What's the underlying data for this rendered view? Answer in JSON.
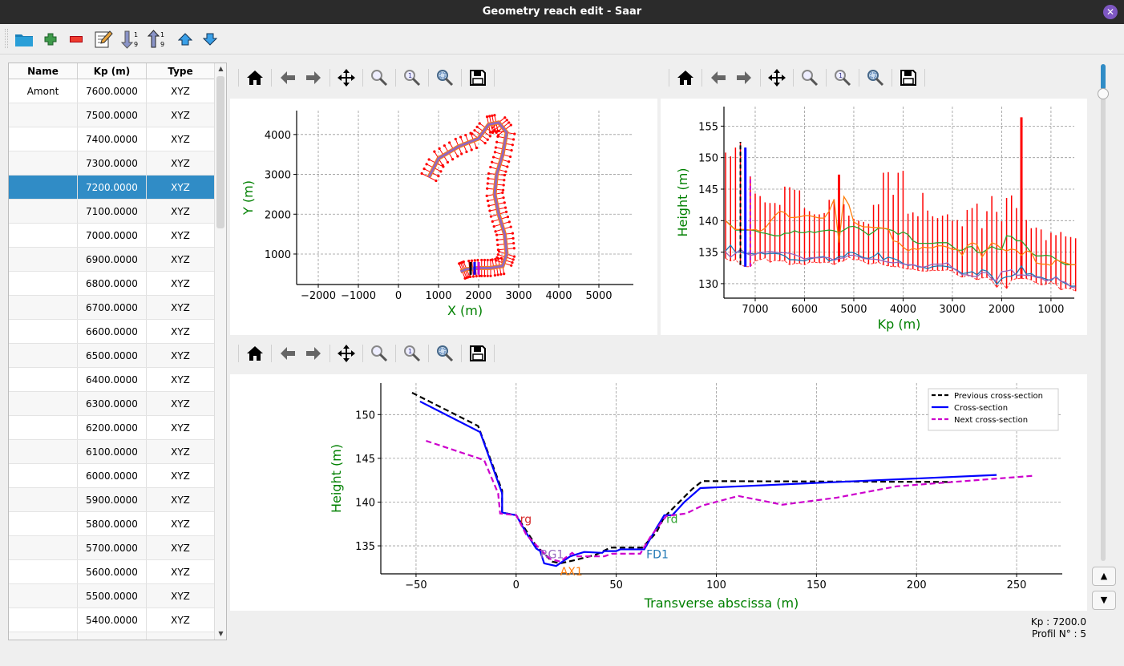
{
  "window": {
    "title": "Geometry reach edit - Saar",
    "close_icon": "close-icon"
  },
  "toolbar": {
    "items": [
      "open-folder-icon",
      "add-icon",
      "delete-icon",
      "edit-icon",
      "sort-ascending-icon",
      "sort-descending-icon",
      "move-up-icon",
      "move-down-icon"
    ]
  },
  "table": {
    "columns": [
      "Name",
      "Kp (m)",
      "Type"
    ],
    "rows": [
      [
        "Amont",
        "7600.0000",
        "XYZ"
      ],
      [
        "",
        "7500.0000",
        "XYZ"
      ],
      [
        "",
        "7400.0000",
        "XYZ"
      ],
      [
        "",
        "7300.0000",
        "XYZ"
      ],
      [
        "",
        "7200.0000",
        "XYZ"
      ],
      [
        "",
        "7100.0000",
        "XYZ"
      ],
      [
        "",
        "7000.0000",
        "XYZ"
      ],
      [
        "",
        "6900.0000",
        "XYZ"
      ],
      [
        "",
        "6800.0000",
        "XYZ"
      ],
      [
        "",
        "6700.0000",
        "XYZ"
      ],
      [
        "",
        "6600.0000",
        "XYZ"
      ],
      [
        "",
        "6500.0000",
        "XYZ"
      ],
      [
        "",
        "6400.0000",
        "XYZ"
      ],
      [
        "",
        "6300.0000",
        "XYZ"
      ],
      [
        "",
        "6200.0000",
        "XYZ"
      ],
      [
        "",
        "6100.0000",
        "XYZ"
      ],
      [
        "",
        "6000.0000",
        "XYZ"
      ],
      [
        "",
        "5900.0000",
        "XYZ"
      ],
      [
        "",
        "5800.0000",
        "XYZ"
      ],
      [
        "",
        "5700.0000",
        "XYZ"
      ],
      [
        "",
        "5600.0000",
        "XYZ"
      ],
      [
        "",
        "5500.0000",
        "XYZ"
      ],
      [
        "",
        "5400.0000",
        "XYZ"
      ],
      [
        "",
        "",
        ""
      ]
    ],
    "selected_index": 4
  },
  "plot_toolbar": [
    "home-icon",
    "back-icon",
    "forward-icon",
    "pan-icon",
    "zoom-icon",
    "zoom-1-icon",
    "zoom-fit-icon",
    "save-icon"
  ],
  "status": {
    "kp": "Kp : 7200.0",
    "profile": "Profil N° : 5"
  },
  "chart_data": [
    {
      "type": "line",
      "xlabel": "X (m)",
      "ylabel": "Y (m)",
      "xlim": [
        -2540,
        5860
      ],
      "ylim": [
        235,
        4600
      ],
      "xticks": [
        -2000,
        -1000,
        0,
        1000,
        2000,
        3000,
        4000,
        5000
      ],
      "yticks": [
        1000,
        2000,
        3000,
        4000
      ],
      "grid": true,
      "centerline": {
        "x": [
          760,
          1000,
          1500,
          2000,
          2250,
          2500,
          2700,
          2600,
          2450,
          2400,
          2500,
          2650,
          2700,
          2600,
          2300,
          2000,
          1700,
          1550
        ],
        "y": [
          2930,
          3400,
          3700,
          3900,
          4250,
          4300,
          4050,
          3500,
          3000,
          2500,
          2000,
          1500,
          1000,
          700,
          650,
          650,
          620,
          560
        ]
      },
      "colors": {
        "sections": "#ff0000",
        "centerline": "#9467bd",
        "bank": "#ff7f0e",
        "previous": "#000000",
        "current": "#0000ff",
        "next": "#cc00cc"
      }
    },
    {
      "type": "line",
      "xlabel": "Kp (m)",
      "ylabel": "Height (m)",
      "xlim": [
        7634,
        527
      ],
      "ylim": [
        127.7,
        158.1
      ],
      "xticks": [
        7000,
        6000,
        5000,
        4000,
        3000,
        2000,
        1000
      ],
      "yticks": [
        130,
        135,
        140,
        145,
        150,
        155
      ],
      "grid": true,
      "kp": [
        7600,
        7500,
        7400,
        7300,
        7200,
        7100,
        7000,
        6900,
        6800,
        6700,
        6600,
        6500,
        6400,
        6300,
        6200,
        6100,
        6000,
        5900,
        5800,
        5700,
        5600,
        5500,
        5400,
        5300,
        5200,
        5100,
        5000,
        4900,
        4800,
        4700,
        4600,
        4500,
        4400,
        4300,
        4200,
        4100,
        4000,
        3900,
        3800,
        3700,
        3600,
        3500,
        3400,
        3300,
        3200,
        3100,
        3000,
        2900,
        2800,
        2700,
        2600,
        2500,
        2400,
        2300,
        2200,
        2100,
        2000,
        1900,
        1800,
        1700,
        1600,
        1500,
        1400,
        1300,
        1200,
        1100,
        1000,
        900,
        800,
        700,
        600,
        500
      ],
      "max": [
        150.8,
        150.2,
        151.6,
        152.5,
        151.6,
        147,
        144.3,
        143.9,
        142.9,
        142.8,
        142.8,
        142.5,
        145.4,
        145.3,
        144.9,
        144.8,
        142,
        141.5,
        141,
        141,
        141.2,
        143.3,
        143.4,
        147.3,
        142.6,
        140.8,
        140.3,
        140,
        139.8,
        139.5,
        142.5,
        142.6,
        147.6,
        147.7,
        144.1,
        147.6,
        147.9,
        141.1,
        141.3,
        140.7,
        144.4,
        141.6,
        140.7,
        140.4,
        140.8,
        141,
        140,
        140.1,
        139.1,
        141.7,
        142,
        142.7,
        138.8,
        141.5,
        143.9,
        141.4,
        139.9,
        143.6,
        144,
        142,
        156.4,
        140.1,
        138.8,
        138.9,
        138.6,
        136.9,
        138.1,
        137.7,
        138.2,
        137.5,
        137.4,
        137.2
      ],
      "min": [
        134,
        133.6,
        133.8,
        133,
        132.7,
        132.7,
        133.6,
        133.8,
        134.1,
        133.4,
        133.7,
        133.6,
        133.6,
        133,
        133.2,
        133.2,
        133,
        133.4,
        133.4,
        133.3,
        133.4,
        133.4,
        133,
        133.5,
        133.6,
        134.2,
        133.8,
        133.8,
        133.5,
        133.1,
        133.2,
        133.4,
        133,
        132.8,
        132.7,
        132.7,
        132.5,
        132.3,
        132.3,
        132.1,
        132,
        132,
        132.1,
        132.1,
        132.1,
        132.2,
        132,
        131.4,
        131,
        131.3,
        131.1,
        130.6,
        130.9,
        131,
        130.5,
        129.4,
        130.3,
        129.2,
        130.6,
        130.8,
        130.8,
        130.8,
        130.6,
        130.1,
        129.8,
        129.9,
        130.2,
        129.9,
        129,
        129.3,
        129.2,
        128.8
      ],
      "series": [
        {
          "color": "#2ca02c",
          "values": [
            140,
            139.3,
            138.5,
            138.5,
            138.5,
            138.5,
            138.4,
            138.1,
            138,
            137.8,
            137.6,
            137.6,
            138,
            138,
            138.4,
            138.1,
            138.1,
            138.3,
            138.1,
            138.3,
            138.4,
            138.5,
            138.4,
            138.1,
            138.5,
            139,
            139.1,
            138.8,
            138.3,
            137.7,
            138.2,
            138.8,
            138.8,
            138.6,
            138.4,
            137.8,
            138.2,
            137.8,
            136.8,
            136.4,
            136.4,
            136.4,
            136.4,
            136.5,
            136.5,
            136.5,
            135.9,
            135.3,
            135.3,
            135.8,
            135.9,
            135,
            134.9,
            135.4,
            135.9,
            135.5,
            135.4,
            137.6,
            137.5,
            136.8,
            136.8,
            135.9,
            134.9,
            134.4,
            134.4,
            134.5,
            134.4,
            133.9,
            133.4,
            133,
            133,
            133
          ]
        },
        {
          "color": "#ff7f0e",
          "values": [
            140,
            139.2,
            138.6,
            138.6,
            138.6,
            138.5,
            138.6,
            138.3,
            138.8,
            139.8,
            140.8,
            141.5,
            141.3,
            140.5,
            140.5,
            140.6,
            140.8,
            140.8,
            140.6,
            140.4,
            140.4,
            141.5,
            143.4,
            136.5,
            143.8,
            142.5,
            139.8,
            139.3,
            139,
            139,
            138.9,
            138.9,
            138.8,
            138.7,
            136.8,
            136.6,
            135.8,
            135.2,
            135.6,
            135.4,
            135.8,
            135.7,
            135.7,
            136,
            136,
            135.8,
            135.4,
            135.5,
            134.5,
            136,
            136.5,
            136.2,
            134.2,
            135.3,
            136.5,
            136.2,
            135.5,
            135.2,
            135.5,
            135.3,
            134.5,
            135.2,
            135,
            133.3,
            133.1,
            133.1,
            132.9,
            133.8,
            133.5,
            133.3,
            133,
            133
          ]
        },
        {
          "color": "#1f77b4",
          "values": [
            135.2,
            136.1,
            135,
            135,
            134.8,
            134.8,
            134.7,
            134.9,
            134.7,
            134.8,
            134.8,
            134.7,
            134.4,
            133.8,
            133.8,
            133.7,
            133.6,
            133.9,
            134.1,
            134.2,
            134.3,
            133.6,
            133.8,
            134.3,
            134.3,
            135,
            134.9,
            134.5,
            134.1,
            134,
            134.3,
            134.9,
            133.8,
            134.2,
            134,
            133.7,
            133.2,
            132.9,
            133,
            132.7,
            132.6,
            132.4,
            132.7,
            132.8,
            132.8,
            132.7,
            132.5,
            132.1,
            131.6,
            131.7,
            131.9,
            131.4,
            132.2,
            132,
            131.2,
            129.9,
            130.8,
            131.1,
            131.2,
            131.6,
            132.8,
            131.5,
            131.6,
            131.1,
            131,
            130.7,
            130.5,
            131.1,
            130.4,
            130,
            129.6,
            129.6
          ]
        },
        {
          "color": "#9467bd",
          "values": [
            135,
            134.2,
            134.8,
            135.4,
            134.9,
            134.5,
            134.6,
            135,
            135,
            135.1,
            135,
            134.9,
            134.9,
            134.8,
            134.6,
            134.3,
            133.9,
            134.1,
            134.1,
            134.1,
            134.2,
            134.1,
            133.7,
            134,
            134.1,
            134.5,
            134.5,
            134.3,
            134,
            133.9,
            133.9,
            133.8,
            133.6,
            133.4,
            133.3,
            133.4,
            133.1,
            133,
            133,
            132.8,
            132.6,
            132.8,
            133.1,
            133.1,
            133.1,
            133.3,
            132.5,
            132,
            131.4,
            131.4,
            131.2,
            131.1,
            131.8,
            131.7,
            130.7,
            130.5,
            131.9,
            132,
            132.2,
            131.3,
            131.4,
            131.3,
            131.3,
            131,
            130.9,
            130.4,
            130.7,
            131,
            130.4,
            130.2,
            129.5,
            129.3
          ]
        }
      ],
      "markers": {
        "previous_kp": 7300,
        "current_kp": 7200,
        "next_kp": 7100
      }
    },
    {
      "type": "line",
      "xlabel": "Transverse abscissa (m)",
      "ylabel": "Height (m)",
      "xlim": [
        -67.6,
        272.8
      ],
      "ylim": [
        131.8,
        153.6
      ],
      "xticks": [
        -50,
        0,
        50,
        100,
        150,
        200,
        250
      ],
      "yticks": [
        135,
        140,
        145,
        150
      ],
      "grid": true,
      "legend": "top-right",
      "series": [
        {
          "name": "Previous cross-section",
          "color": "#000000",
          "style": "dashed",
          "x": [
            -52,
            -19,
            -7,
            -7,
            0,
            10,
            18,
            22,
            30,
            40,
            47,
            63,
            70,
            74,
            88,
            93,
            218
          ],
          "y": [
            152.5,
            148.7,
            141.3,
            138.8,
            138.5,
            135,
            133.2,
            133,
            133.4,
            134,
            134.8,
            134.8,
            136.5,
            138.3,
            141.5,
            142.4,
            142.3
          ]
        },
        {
          "name": "Cross-section",
          "color": "#0000ff",
          "style": "solid",
          "x": [
            -48,
            -18,
            -7,
            -7,
            0,
            5,
            10,
            12,
            14,
            20,
            27,
            34,
            43,
            44,
            50,
            52,
            64,
            70,
            74,
            78,
            84,
            92,
            240
          ],
          "y": [
            151.5,
            148,
            141,
            138.8,
            138.5,
            136.5,
            134.7,
            134.4,
            133,
            132.7,
            133.8,
            134.3,
            134.2,
            134.4,
            134.4,
            134.6,
            134.6,
            137,
            138.5,
            138.5,
            140,
            141.6,
            143.1
          ]
        },
        {
          "name": "Next cross-section",
          "color": "#cc00cc",
          "style": "dashed",
          "x": [
            -45,
            -16,
            -9,
            -8,
            0,
            5,
            12,
            17,
            22,
            28,
            30,
            44,
            48,
            62,
            67,
            75,
            85,
            93,
            111,
            133,
            160,
            190,
            258
          ],
          "y": [
            147,
            144.8,
            141,
            138.7,
            138.5,
            136.3,
            134.6,
            133.5,
            133.2,
            134.2,
            133.8,
            133.8,
            134.1,
            134.1,
            136,
            138.4,
            138.7,
            139.6,
            140.7,
            139.7,
            140.5,
            141.8,
            143
          ]
        }
      ],
      "annotations": [
        {
          "text": "rg",
          "x": 2,
          "y": 137.6,
          "color": "#d62728"
        },
        {
          "text": "RG1",
          "x": 12,
          "y": 133.6,
          "color": "#9467bd"
        },
        {
          "text": "AX1",
          "x": 22,
          "y": 131.6,
          "color": "#ff7f0e"
        },
        {
          "text": "FD1",
          "x": 65,
          "y": 133.6,
          "color": "#1f77b4"
        },
        {
          "text": "rd",
          "x": 75,
          "y": 137.6,
          "color": "#2ca02c"
        }
      ]
    }
  ]
}
